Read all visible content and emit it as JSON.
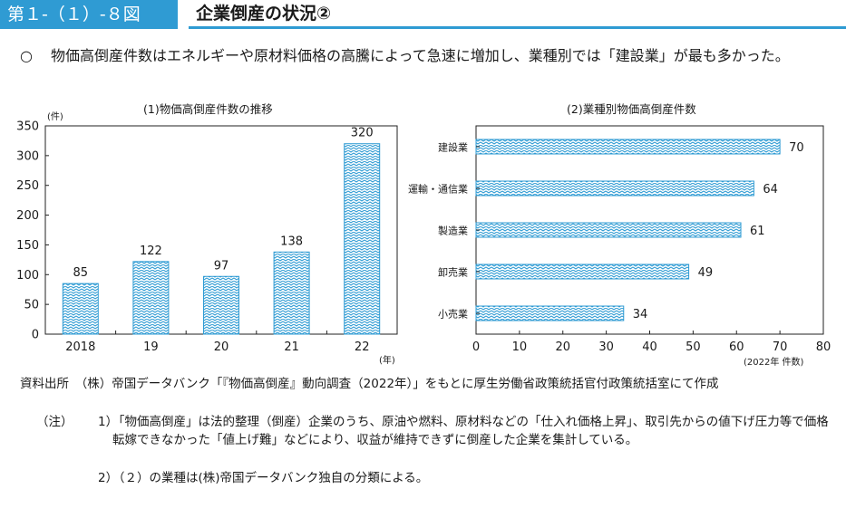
{
  "header": {
    "figure_label": "第１-（１）-８図",
    "title": "企業倒産の状況②"
  },
  "lead": {
    "mark": "○",
    "text": "物価高倒産件数はエネルギーや原材料価格の高騰によって急速に増加し、業種別では「建設業」が最も多かった。"
  },
  "charts": {
    "left_title": "(1)物価高倒産件数の推移",
    "right_title": "(2)業種別物価高倒産件数"
  },
  "chart_data": [
    {
      "type": "bar",
      "title": "(1)物価高倒産件数の推移",
      "y_unit": "(件)",
      "x_unit": "(年)",
      "categories": [
        "2018",
        "19",
        "20",
        "21",
        "22"
      ],
      "values": [
        85,
        122,
        97,
        138,
        320
      ],
      "ylim": [
        0,
        350
      ],
      "yticks": [
        0,
        50,
        100,
        150,
        200,
        250,
        300,
        350
      ],
      "bar_color": "#2f9bd3",
      "pattern": "zigzag"
    },
    {
      "type": "bar",
      "orientation": "horizontal",
      "title": "(2)業種別物価高倒産件数",
      "x_unit": "(2022年 件数)",
      "categories": [
        "建設業",
        "運輸・通信業",
        "製造業",
        "卸売業",
        "小売業"
      ],
      "values": [
        70,
        64,
        61,
        49,
        34
      ],
      "xlim": [
        0,
        80
      ],
      "xticks": [
        0,
        10,
        20,
        30,
        40,
        50,
        60,
        70,
        80
      ],
      "bar_color": "#2f9bd3",
      "pattern": "zigzag"
    }
  ],
  "notes": {
    "source": "資料出所　（株）帝国データバンク「『物価高倒産』動向調査（2022年）」をもとに厚生労働省政策統括官付政策統括室にて作成",
    "label": "（注）",
    "items": [
      {
        "num": "1）",
        "text": "「物価高倒産」は法的整理（倒産）企業のうち、原油や燃料、原材料などの「仕入れ価格上昇」、取引先からの値下げ圧力等で価格転嫁できなかった「値上げ難」などにより、収益が維持できずに倒産した企業を集計している。"
      },
      {
        "num": "2）",
        "text": "（２）の業種は(株)帝国データバンク独自の分類による。"
      }
    ]
  }
}
